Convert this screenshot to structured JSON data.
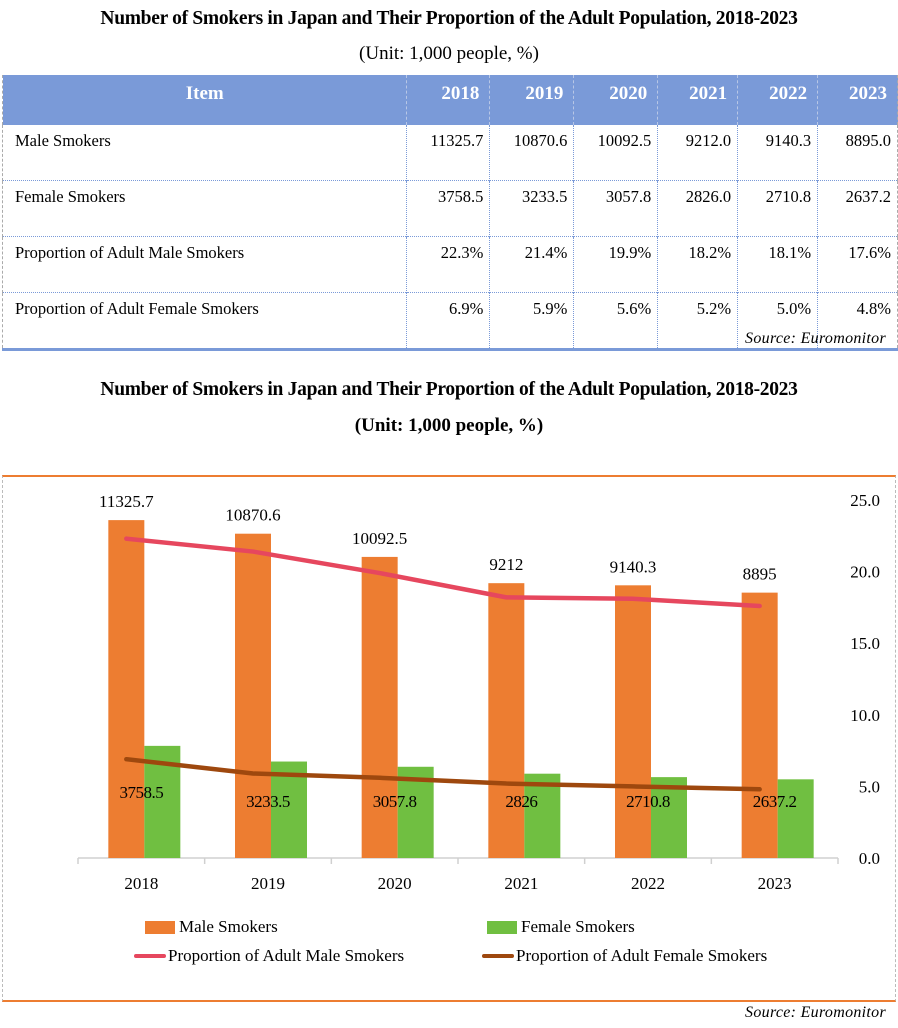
{
  "table_section": {
    "title": "Number of Smokers in Japan and Their Proportion of the Adult Population, 2018-2023",
    "subtitle": "(Unit: 1,000 people, %)",
    "header": [
      "Item",
      "2018",
      "2019",
      "2020",
      "2021",
      "2022",
      "2023"
    ],
    "rows": [
      {
        "label": "Male Smokers",
        "values": [
          "11325.7",
          "10870.6",
          "10092.5",
          "9212.0",
          "9140.3",
          "8895.0"
        ]
      },
      {
        "label": "Female Smokers",
        "values": [
          "3758.5",
          "3233.5",
          "3057.8",
          "2826.0",
          "2710.8",
          "2637.2"
        ]
      },
      {
        "label": "Proportion of Adult Male Smokers",
        "values": [
          "22.3%",
          "21.4%",
          "19.9%",
          "18.2%",
          "18.1%",
          "17.6%"
        ]
      },
      {
        "label": "Proportion of Adult Female  Smokers",
        "values": [
          "6.9%",
          "5.9%",
          "5.6%",
          "5.2%",
          "5.0%",
          "4.8%"
        ]
      }
    ],
    "source": "Source: Euromonitor"
  },
  "chart_section": {
    "title": "Number of Smokers in Japan and Their Proportion of the Adult Population, 2018-2023",
    "subtitle": "(Unit: 1,000 people, %)",
    "source": "Source: Euromonitor"
  },
  "colors": {
    "male_bar": "#ed7d31",
    "female_bar": "#70bf41",
    "male_line": "#e6475e",
    "female_line": "#9e480e",
    "table_header": "#7a9ad8"
  },
  "chart_data": {
    "type": "bar+line",
    "title": "Number of Smokers in Japan and Their Proportion of the Adult Population, 2018-2023",
    "subtitle": "(Unit: 1,000 people, %)",
    "categories": [
      "2018",
      "2019",
      "2020",
      "2021",
      "2022",
      "2023"
    ],
    "series": [
      {
        "name": "Male Smokers",
        "type": "bar",
        "axis": "primary",
        "values": [
          11325.7,
          10870.6,
          10092.5,
          9212,
          9140.3,
          8895
        ],
        "labels": [
          "11325.7",
          "10870.6",
          "10092.5",
          "9212",
          "9140.3",
          "8895"
        ]
      },
      {
        "name": "Female Smokers",
        "type": "bar",
        "axis": "primary",
        "values": [
          3758.5,
          3233.5,
          3057.8,
          2826,
          2710.8,
          2637.2
        ],
        "labels": [
          "3758.5",
          "3233.5",
          "3057.8",
          "2826",
          "2710.8",
          "2637.2"
        ]
      },
      {
        "name": "Proportion of Adult Male Smokers",
        "type": "line",
        "axis": "secondary",
        "values": [
          22.3,
          21.4,
          19.9,
          18.2,
          18.1,
          17.6
        ]
      },
      {
        "name": "Proportion of Adult Female Smokers",
        "type": "line",
        "axis": "secondary",
        "values": [
          6.9,
          5.9,
          5.6,
          5.2,
          5.0,
          4.8
        ]
      }
    ],
    "primary_ylim": [
      0,
      12000
    ],
    "primary_axis_visible": false,
    "secondary_ylim": [
      0,
      25
    ],
    "secondary_ticks": [
      "0.0",
      "5.0",
      "10.0",
      "15.0",
      "20.0",
      "25.0"
    ],
    "grid": false,
    "legend": {
      "placement": "bottom",
      "entries": [
        "Male Smokers",
        "Female Smokers",
        "Proportion of Adult Male Smokers",
        "Proportion of Adult Female Smokers"
      ]
    }
  }
}
